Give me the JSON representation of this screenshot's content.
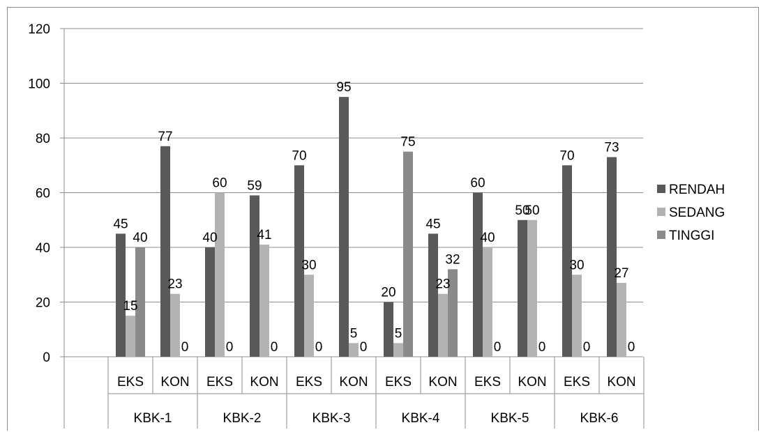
{
  "chart_data": {
    "type": "bar",
    "title": "",
    "xlabel": "",
    "ylabel": "",
    "ylim": [
      0,
      120
    ],
    "yticks": [
      0,
      20,
      40,
      60,
      80,
      100,
      120
    ],
    "grid": true,
    "legend_position": "right",
    "groups": [
      "KBK-1",
      "KBK-2",
      "KBK-3",
      "KBK-4",
      "KBK-5",
      "KBK-6"
    ],
    "categories": [
      "EKS",
      "KON",
      "EKS",
      "KON",
      "EKS",
      "KON",
      "EKS",
      "KON",
      "EKS",
      "KON",
      "EKS",
      "KON"
    ],
    "series": [
      {
        "name": "RENDAH",
        "color": "#595959",
        "values": [
          45,
          77,
          40,
          59,
          70,
          95,
          20,
          45,
          60,
          50,
          70,
          73
        ]
      },
      {
        "name": "SEDANG",
        "color": "#b3b3b3",
        "values": [
          15,
          23,
          60,
          41,
          30,
          5,
          5,
          23,
          40,
          50,
          30,
          27
        ]
      },
      {
        "name": "TINGGI",
        "color": "#8a8a8a",
        "values": [
          40,
          0,
          0,
          0,
          0,
          0,
          75,
          32,
          0,
          0,
          0,
          0
        ]
      }
    ]
  }
}
